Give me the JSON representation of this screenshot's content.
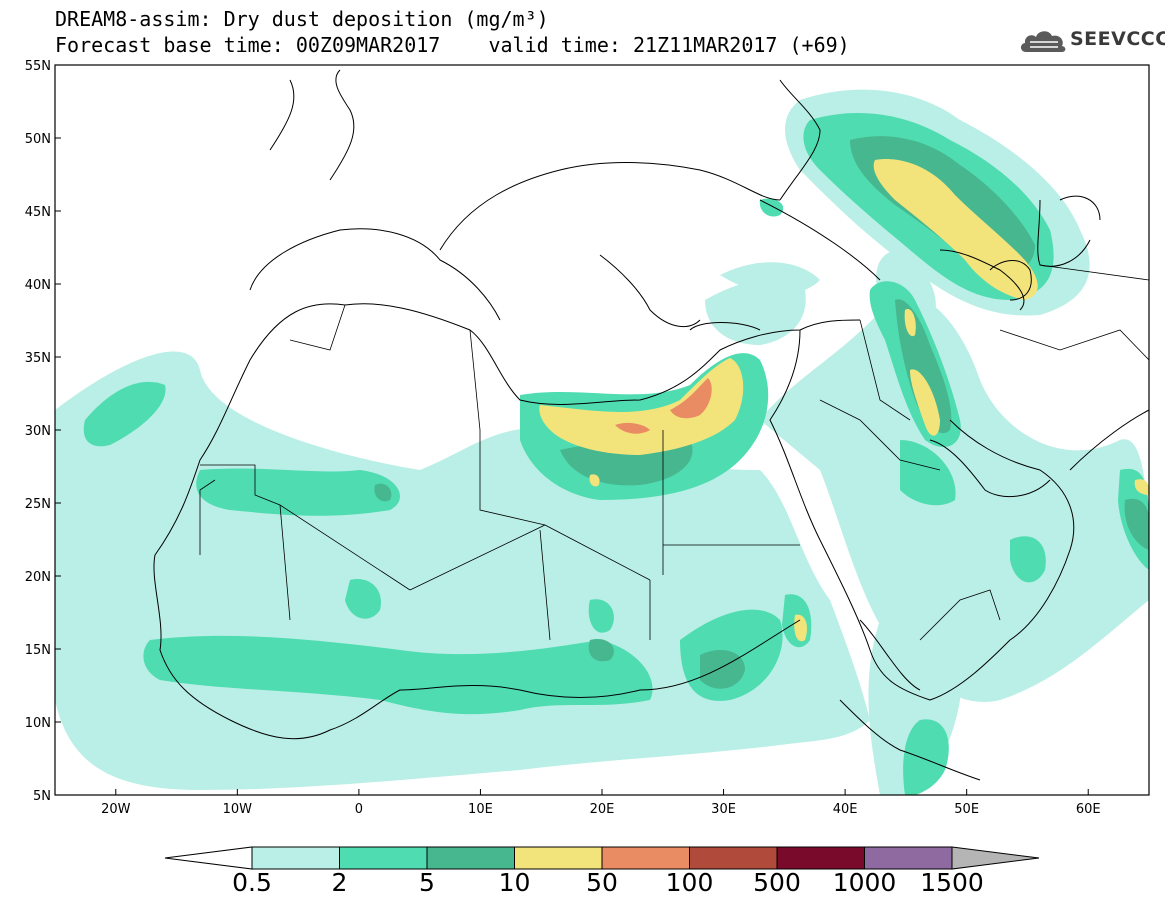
{
  "header": {
    "line1": "DREAM8-assim: Dry dust deposition (mg/m³)",
    "line2": "Forecast base time: 00Z09MAR2017    valid time: 21Z11MAR2017 (+69)"
  },
  "logo": {
    "text": "SEEVCCC",
    "icon": "cloud-icon"
  },
  "map": {
    "lat_ticks": [
      "55N",
      "50N",
      "45N",
      "40N",
      "35N",
      "30N",
      "25N",
      "20N",
      "15N",
      "10N",
      "5N"
    ],
    "lon_ticks": [
      "20W",
      "10W",
      "0",
      "10E",
      "20E",
      "30E",
      "40E",
      "50E",
      "60E"
    ],
    "lon_range": [
      -25,
      65
    ],
    "lat_range": [
      5,
      55
    ]
  },
  "colorbar": {
    "labels": [
      "0.5",
      "2",
      "5",
      "10",
      "50",
      "100",
      "500",
      "1000",
      "1500"
    ],
    "colors": [
      "#b9efe6",
      "#4fdcb1",
      "#47b78f",
      "#f2e47b",
      "#ea8c63",
      "#b04b3c",
      "#7a0a2c",
      "#8e6aa0"
    ],
    "under_color": "#ffffff",
    "over_color": "#b5b5b5"
  }
}
